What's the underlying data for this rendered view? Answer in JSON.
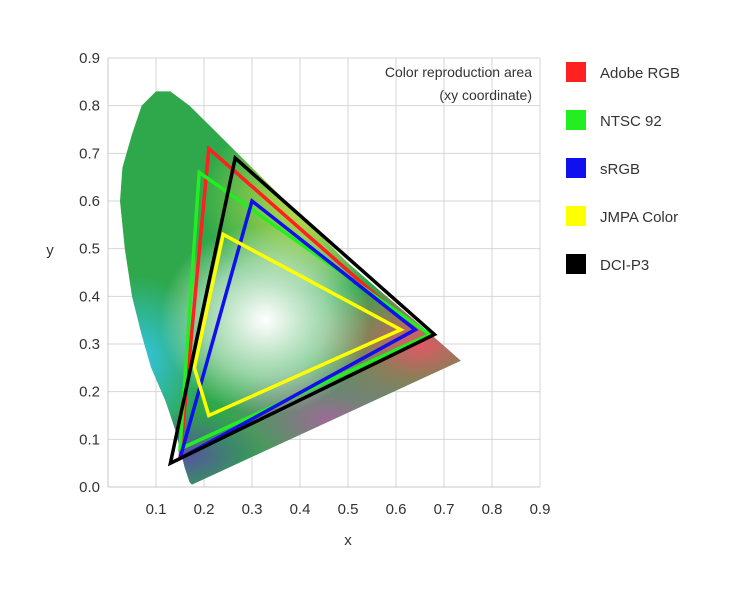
{
  "chart_data": {
    "type": "line",
    "title": "",
    "xlabel": "x",
    "ylabel": "y",
    "xlim": [
      0,
      0.9
    ],
    "ylim": [
      0,
      0.9
    ],
    "x_ticks": [
      "0.1",
      "0.2",
      "0.3",
      "0.4",
      "0.5",
      "0.6",
      "0.7",
      "0.8",
      "0.9"
    ],
    "y_ticks": [
      "0.0",
      "0.1",
      "0.2",
      "0.3",
      "0.4",
      "0.5",
      "0.6",
      "0.7",
      "0.8",
      "0.9"
    ],
    "grid": true,
    "annotation": [
      "Color reproduction area",
      "(xy coordinate)"
    ],
    "legend_position": "right",
    "spectral_locus": [
      [
        0.175,
        0.005
      ],
      [
        0.17,
        0.01
      ],
      [
        0.16,
        0.04
      ],
      [
        0.15,
        0.08
      ],
      [
        0.14,
        0.12
      ],
      [
        0.12,
        0.18
      ],
      [
        0.09,
        0.25
      ],
      [
        0.07,
        0.32
      ],
      [
        0.05,
        0.4
      ],
      [
        0.035,
        0.5
      ],
      [
        0.025,
        0.6
      ],
      [
        0.03,
        0.67
      ],
      [
        0.05,
        0.74
      ],
      [
        0.07,
        0.8
      ],
      [
        0.1,
        0.83
      ],
      [
        0.13,
        0.83
      ],
      [
        0.17,
        0.8
      ],
      [
        0.22,
        0.75
      ],
      [
        0.28,
        0.69
      ],
      [
        0.34,
        0.63
      ],
      [
        0.42,
        0.55
      ],
      [
        0.5,
        0.47
      ],
      [
        0.58,
        0.4
      ],
      [
        0.65,
        0.34
      ],
      [
        0.735,
        0.265
      ]
    ],
    "series": [
      {
        "name": "Adobe RGB",
        "color": "#ff2020",
        "points": [
          [
            0.21,
            0.71
          ],
          [
            0.64,
            0.33
          ],
          [
            0.15,
            0.06
          ]
        ]
      },
      {
        "name": "NTSC 92",
        "color": "#22ee22",
        "points": [
          [
            0.19,
            0.66
          ],
          [
            0.67,
            0.32
          ],
          [
            0.15,
            0.08
          ]
        ]
      },
      {
        "name": "sRGB",
        "color": "#1010ee",
        "points": [
          [
            0.3,
            0.6
          ],
          [
            0.64,
            0.33
          ],
          [
            0.15,
            0.06
          ]
        ]
      },
      {
        "name": "JMPA Color",
        "color": "#ffff00",
        "points": [
          [
            0.24,
            0.53
          ],
          [
            0.61,
            0.33
          ],
          [
            0.21,
            0.15
          ],
          [
            0.18,
            0.25
          ]
        ]
      },
      {
        "name": "DCI-P3",
        "color": "#000000",
        "points": [
          [
            0.265,
            0.69
          ],
          [
            0.68,
            0.32
          ],
          [
            0.13,
            0.05
          ]
        ]
      }
    ]
  }
}
